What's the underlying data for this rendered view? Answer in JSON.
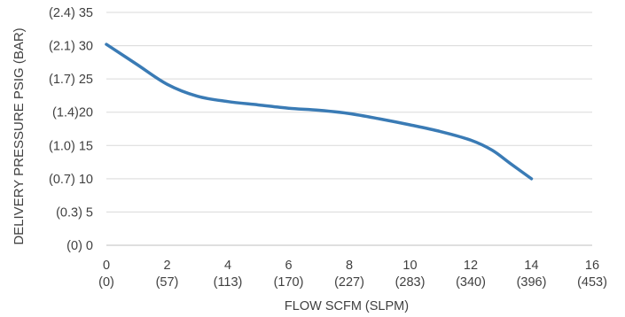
{
  "chart_data": {
    "type": "line",
    "title": "",
    "xlabel": "FLOW SCFM (SLPM)",
    "ylabel": "DELIVERY PRESSURE PSIG (BAR)",
    "xlim": [
      0,
      16
    ],
    "ylim": [
      0,
      35
    ],
    "x_ticks": [
      {
        "value": 0,
        "label": "0",
        "secondary": "(0)"
      },
      {
        "value": 2,
        "label": "2",
        "secondary": "(57)"
      },
      {
        "value": 4,
        "label": "4",
        "secondary": "(113)"
      },
      {
        "value": 6,
        "label": "6",
        "secondary": "(170)"
      },
      {
        "value": 8,
        "label": "8",
        "secondary": "(227)"
      },
      {
        "value": 10,
        "label": "10",
        "secondary": "(283)"
      },
      {
        "value": 12,
        "label": "12",
        "secondary": "(340)"
      },
      {
        "value": 14,
        "label": "14",
        "secondary": "(396)"
      },
      {
        "value": 16,
        "label": "16",
        "secondary": "(453)"
      }
    ],
    "y_ticks": [
      {
        "value": 0,
        "label": "(0)   0"
      },
      {
        "value": 5,
        "label": "(0.3)   5"
      },
      {
        "value": 10,
        "label": "(0.7) 10"
      },
      {
        "value": 15,
        "label": "(1.0) 15"
      },
      {
        "value": 20,
        "label": "(1.4)20"
      },
      {
        "value": 25,
        "label": "(1.7) 25"
      },
      {
        "value": 30,
        "label": "(2.1) 30"
      },
      {
        "value": 35,
        "label": "(2.4) 35"
      }
    ],
    "grid": "horizontal",
    "series": [
      {
        "color": "#3a7bb5",
        "x": [
          0,
          1,
          2,
          3,
          4,
          5,
          6,
          7,
          8,
          9,
          10,
          11,
          12,
          12.7,
          13.3,
          14
        ],
        "y": [
          30.2,
          27.2,
          24.2,
          22.4,
          21.6,
          21.1,
          20.6,
          20.3,
          19.8,
          19.0,
          18.1,
          17.1,
          15.8,
          14.3,
          12.3,
          10.0
        ]
      }
    ]
  }
}
